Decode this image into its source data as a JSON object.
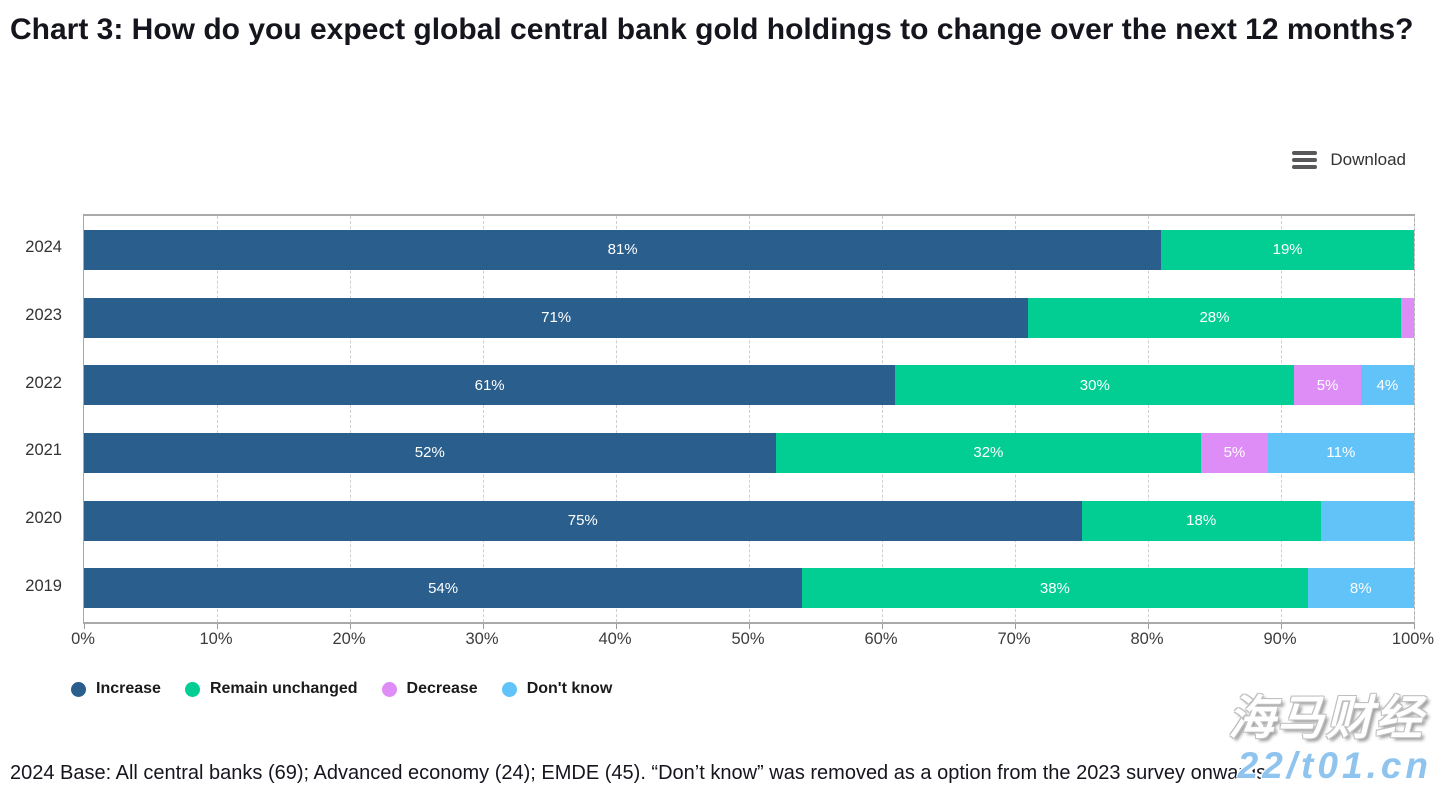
{
  "title": "Chart 3: How do you expect global central bank gold holdings to change over the next 12 months?",
  "toolbar": {
    "download_label": "Download",
    "menu_icon": "hamburger-menu-icon"
  },
  "chart_data": {
    "type": "bar",
    "orientation": "horizontal",
    "stacked": true,
    "unit": "percent",
    "xlim": [
      0,
      100
    ],
    "x_ticks": [
      "0%",
      "10%",
      "20%",
      "30%",
      "40%",
      "50%",
      "60%",
      "70%",
      "80%",
      "90%",
      "100%"
    ],
    "grid": "vertical-dashed",
    "legend_position": "bottom",
    "categories": [
      "2024",
      "2023",
      "2022",
      "2021",
      "2020",
      "2019"
    ],
    "series": [
      {
        "name": "Increase",
        "color": "#2a5f8d",
        "values": [
          81,
          71,
          61,
          52,
          75,
          54
        ],
        "labels": [
          "81%",
          "71%",
          "61%",
          "52%",
          "75%",
          "54%"
        ]
      },
      {
        "name": "Remain unchanged",
        "color": "#02ce94",
        "values": [
          19,
          28,
          30,
          32,
          18,
          38
        ],
        "labels": [
          "19%",
          "28%",
          "30%",
          "32%",
          "18%",
          "38%"
        ]
      },
      {
        "name": "Decrease",
        "color": "#de8cf6",
        "values": [
          0,
          1,
          5,
          5,
          0,
          0
        ],
        "labels": [
          "",
          "",
          "5%",
          "5%",
          "",
          ""
        ]
      },
      {
        "name": "Don't know",
        "color": "#62c3f8",
        "values": [
          0,
          0,
          4,
          11,
          7,
          8
        ],
        "labels": [
          "",
          "",
          "4%",
          "11%",
          "",
          "8%"
        ]
      }
    ]
  },
  "footnote": "2024 Base: All central banks (69); Advanced economy (24); EMDE (45). “Don’t know” was removed as a option from the 2023 survey onwards.",
  "watermark": {
    "line1": "海马财经",
    "line2": "22/t01.cn"
  }
}
